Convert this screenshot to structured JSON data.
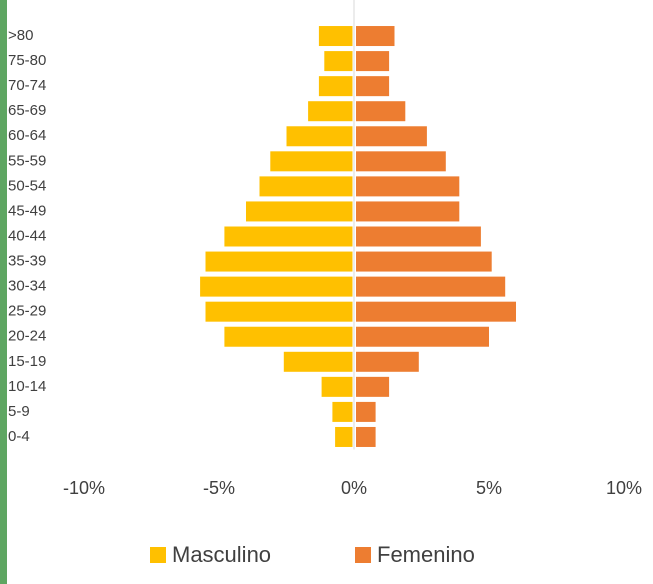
{
  "chart_data": {
    "type": "pyramid",
    "categories": [
      ">80",
      "75-80",
      "70-74",
      "65-69",
      "60-64",
      "55-59",
      "50-54",
      "45-49",
      "40-44",
      "35-39",
      "30-34",
      "25-29",
      "20-24",
      "15-19",
      "10-14",
      "5-9",
      "0-4"
    ],
    "series": [
      {
        "name": "Masculino",
        "color": "#ffc000",
        "values": [
          -1.3,
          -1.1,
          -1.3,
          -1.7,
          -2.5,
          -3.1,
          -3.5,
          -4.0,
          -4.8,
          -5.5,
          -5.7,
          -5.5,
          -4.8,
          -2.6,
          -1.2,
          -0.8,
          -0.7
        ]
      },
      {
        "name": "Femenino",
        "color": "#ed7d31",
        "values": [
          1.5,
          1.3,
          1.3,
          1.9,
          2.7,
          3.4,
          3.9,
          3.9,
          4.7,
          5.1,
          5.6,
          6.0,
          5.0,
          2.4,
          1.3,
          0.8,
          0.8
        ]
      }
    ],
    "xlim": [
      -10,
      10
    ],
    "xticks": [
      {
        "value": -10,
        "label": "-10%"
      },
      {
        "value": -5,
        "label": "-5%"
      },
      {
        "value": 0,
        "label": "0%"
      },
      {
        "value": 5,
        "label": "5%"
      },
      {
        "value": 10,
        "label": "10%"
      }
    ],
    "legend": "bottom"
  }
}
